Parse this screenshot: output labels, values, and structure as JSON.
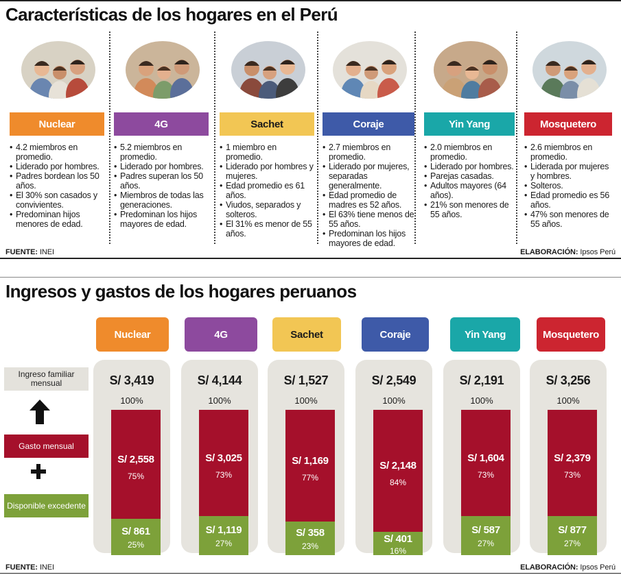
{
  "section1": {
    "title": "Características de los hogares en el Perú",
    "source_label": "FUENTE:",
    "source_value": "INEI",
    "elaboration_label": "ELABORACIÓN:",
    "elaboration_value": "Ipsos Perú"
  },
  "household_types": [
    {
      "name": "Nuclear",
      "color": "#ef8b2c",
      "label_text_color": "#ffffff",
      "bullets": [
        "4.2 miembros en promedio.",
        "Liderado por hombres.",
        "Padres bordean los 50 años.",
        "El 30% son casados y convivientes.",
        "Predominan hijos menores de edad."
      ]
    },
    {
      "name": "4G",
      "color": "#8d4a9e",
      "label_text_color": "#ffffff",
      "bullets": [
        "5.2 miembros en promedio.",
        "Liderado por hombres.",
        "Padres superan los 50 años.",
        "Miembros de todas las generaciones.",
        "Predominan los hijos mayores de edad."
      ]
    },
    {
      "name": "Sachet",
      "color": "#f2c654",
      "label_text_color": "#1a1a1a",
      "bullets": [
        "1 miembro en promedio.",
        "Liderado por hombres y mujeres.",
        "Edad promedio es 61 años.",
        "Viudos, separados y solteros.",
        "El 31% es menor de 55 años."
      ]
    },
    {
      "name": "Coraje",
      "color": "#3e5aa8",
      "label_text_color": "#ffffff",
      "bullets": [
        "2.7 miembros en promedio.",
        "Liderado por mujeres, separadas generalmente.",
        "Edad promedio de madres es 52 años.",
        "El 63% tiene menos de 55 años.",
        "Predominan los hijos mayores de edad."
      ]
    },
    {
      "name": "Yin Yang",
      "color": "#1aa7a8",
      "label_text_color": "#ffffff",
      "bullets": [
        "2.0 miembros en promedio.",
        "Liderado por hombres.",
        "Parejas casadas.",
        "Adultos mayores (64 años).",
        "21% son menores de 55 años."
      ]
    },
    {
      "name": "Mosquetero",
      "color": "#cc2530",
      "label_text_color": "#ffffff",
      "bullets": [
        "2.6 miembros en promedio.",
        "Liderada por mujeres y hombres.",
        "Solteros.",
        "Edad promedio es 56 años.",
        "47% son menores de 55 años."
      ]
    }
  ],
  "section2": {
    "title": "Ingresos y gastos de los hogares peruanos",
    "source_label": "FUENTE:",
    "source_value": "INEI",
    "elaboration_label": "ELABORACIÓN:",
    "elaboration_value": "Ipsos Perú",
    "legend": {
      "income": "Ingreso familiar mensual",
      "spending": "Gasto mensual",
      "disposable": "Disponible excedente",
      "income_color": "#e4e2dc",
      "spending_color": "#a5102b",
      "disposable_color": "#7da13a"
    }
  },
  "chart_data": {
    "type": "bar",
    "title": "Ingresos y gastos de los hogares peruanos",
    "categories": [
      "Nuclear",
      "4G",
      "Sachet",
      "Coraje",
      "Yin Yang",
      "Mosquetero"
    ],
    "income_labels": [
      "S/ 3,419",
      "S/ 4,144",
      "S/ 1,527",
      "S/ 2,549",
      "S/ 2,191",
      "S/ 3,256"
    ],
    "income_values": [
      3419,
      4144,
      1527,
      2549,
      2191,
      3256
    ],
    "income_pct_label": "100%",
    "series": [
      {
        "name": "Gasto mensual",
        "values": [
          2558,
          3025,
          1169,
          2148,
          1604,
          2379
        ],
        "labels": [
          "S/ 2,558",
          "S/ 3,025",
          "S/ 1,169",
          "S/ 2,148",
          "S/ 1,604",
          "S/ 2,379"
        ],
        "pct": [
          75,
          73,
          77,
          84,
          73,
          73
        ],
        "pct_labels": [
          "75%",
          "73%",
          "77%",
          "84%",
          "73%",
          "73%"
        ]
      },
      {
        "name": "Disponible excedente",
        "values": [
          861,
          1119,
          358,
          401,
          587,
          877
        ],
        "labels": [
          "S/ 861",
          "S/ 1,119",
          "S/ 358",
          "S/ 401",
          "S/ 587",
          "S/ 877"
        ],
        "pct": [
          25,
          27,
          23,
          16,
          27,
          27
        ],
        "pct_labels": [
          "25%",
          "27%",
          "23%",
          "16%",
          "27%",
          "27%"
        ]
      }
    ],
    "stacked": true
  }
}
